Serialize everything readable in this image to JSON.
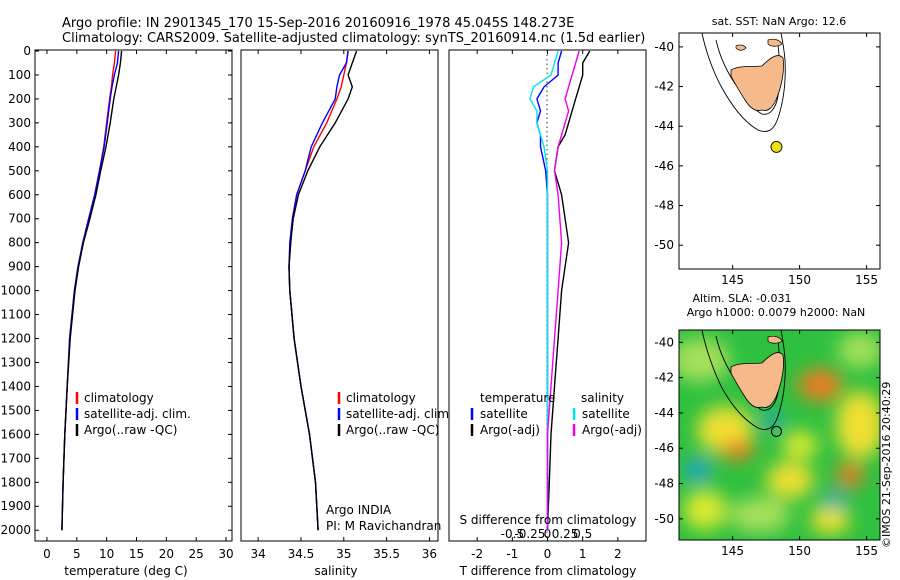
{
  "header": {
    "line1": "Argo profile: IN 2901345_170 15-Sep-2016 20160916_1978 45.045S 148.273E",
    "line2": "Climatology: CARS2009. Satellite-adjusted climatology: synTS_20160914.nc (1.5d earlier)"
  },
  "colors": {
    "climatology": "#ff0000",
    "satellite": "#0000ff",
    "argo": "#000000",
    "sal_satellite": "#00e5ee",
    "sal_argo": "#ee00ee",
    "land": "#f6b98a",
    "marker": "#f0e010"
  },
  "chart_data": [
    {
      "type": "line",
      "xlabel": "temperature (deg C)",
      "ylabel": "",
      "xlim": [
        -2,
        31
      ],
      "ylim": [
        2050,
        0
      ],
      "xticks": [
        0,
        5,
        10,
        15,
        20,
        25,
        30
      ],
      "yticks": [
        0,
        100,
        200,
        300,
        400,
        500,
        600,
        700,
        800,
        900,
        1000,
        1100,
        1200,
        1300,
        1400,
        1500,
        1600,
        1700,
        1800,
        1900,
        2000
      ],
      "legend": [
        "climatology",
        "satellite-adj. clim.",
        "Argo(..raw -QC)"
      ],
      "series": [
        {
          "name": "climatology",
          "color": "#ff0000",
          "depth": [
            0,
            50,
            100,
            150,
            200,
            300,
            400,
            500,
            600,
            700,
            800,
            900,
            1000,
            1200,
            1400,
            1600,
            1800,
            2000
          ],
          "values": [
            11.5,
            11.3,
            11.0,
            10.8,
            10.5,
            10.0,
            9.5,
            8.8,
            8.0,
            7.0,
            6.0,
            5.2,
            4.6,
            3.8,
            3.4,
            3.0,
            2.7,
            2.5
          ]
        },
        {
          "name": "satellite-adj. clim.",
          "color": "#0000ff",
          "depth": [
            0,
            50,
            100,
            150,
            200,
            300,
            400,
            500,
            600,
            700,
            800,
            900,
            1000,
            1200,
            1400,
            1600,
            1800,
            2000
          ],
          "values": [
            12.0,
            11.8,
            11.3,
            10.9,
            10.6,
            10.1,
            9.6,
            8.8,
            8.0,
            7.0,
            6.0,
            5.2,
            4.6,
            3.8,
            3.4,
            3.0,
            2.7,
            2.5
          ]
        },
        {
          "name": "Argo(..raw -QC)",
          "color": "#000000",
          "depth": [
            0,
            50,
            100,
            150,
            200,
            300,
            400,
            500,
            600,
            700,
            800,
            900,
            1000,
            1200,
            1400,
            1600,
            1800,
            2000
          ],
          "values": [
            12.5,
            12.3,
            12.0,
            11.6,
            11.2,
            10.6,
            9.9,
            9.0,
            8.2,
            7.2,
            6.1,
            5.3,
            4.7,
            3.9,
            3.4,
            3.0,
            2.7,
            2.5
          ]
        }
      ]
    },
    {
      "type": "line",
      "xlabel": "salinity",
      "ylabel": "",
      "xlim": [
        33.8,
        36.1
      ],
      "ylim": [
        2050,
        0
      ],
      "xticks": [
        34,
        34.5,
        35,
        35.5,
        36
      ],
      "legend": [
        "climatology",
        "satellite-adj. clim.",
        "Argo(..raw -QC)"
      ],
      "note_lines": [
        "Argo INDIA",
        "PI: M Ravichandran"
      ],
      "series": [
        {
          "name": "climatology",
          "color": "#ff0000",
          "depth": [
            0,
            50,
            100,
            150,
            200,
            300,
            400,
            500,
            600,
            700,
            800,
            900,
            1000,
            1200,
            1400,
            1600,
            1800,
            2000
          ],
          "values": [
            35.05,
            35.03,
            35.0,
            34.97,
            34.92,
            34.8,
            34.65,
            34.55,
            34.45,
            34.4,
            34.38,
            34.36,
            34.37,
            34.42,
            34.5,
            34.6,
            34.67,
            34.7
          ]
        },
        {
          "name": "satellite-adj. clim.",
          "color": "#0000ff",
          "depth": [
            0,
            50,
            100,
            150,
            200,
            300,
            400,
            500,
            600,
            700,
            800,
            900,
            1000,
            1200,
            1400,
            1600,
            1800,
            2000
          ],
          "values": [
            35.05,
            35.03,
            34.95,
            34.92,
            34.9,
            34.75,
            34.62,
            34.55,
            34.45,
            34.4,
            34.37,
            34.36,
            34.37,
            34.42,
            34.5,
            34.6,
            34.67,
            34.7
          ]
        },
        {
          "name": "Argo(..raw -QC)",
          "color": "#000000",
          "depth": [
            0,
            50,
            100,
            150,
            200,
            300,
            400,
            500,
            600,
            700,
            800,
            900,
            1000,
            1200,
            1400,
            1600,
            1800,
            2000
          ],
          "values": [
            35.15,
            35.1,
            35.05,
            35.1,
            35.05,
            34.9,
            34.72,
            34.58,
            34.47,
            34.41,
            34.38,
            34.36,
            34.37,
            34.42,
            34.5,
            34.6,
            34.67,
            34.7
          ]
        }
      ]
    },
    {
      "type": "line",
      "xlabel": "T difference from climatology",
      "top_label": "S difference from climatology",
      "xlim": [
        -2.8,
        2.8
      ],
      "ylim": [
        2050,
        0
      ],
      "xticks": [
        -2,
        -1,
        0,
        1,
        2
      ],
      "top_ticks": [
        "-0.5",
        "-0.25",
        "0",
        "0.25",
        "0.5"
      ],
      "legend_left_title": "temperature",
      "legend_right_title": "salinity",
      "legend_left": [
        "satellite",
        "Argo(-adj)"
      ],
      "legend_right": [
        "satellite",
        "Argo(-adj)"
      ],
      "series": [
        {
          "name": "T satellite",
          "color": "#0000ff",
          "depth": [
            0,
            50,
            100,
            150,
            200,
            250,
            300,
            350,
            400,
            500,
            600,
            800,
            1000,
            1200,
            1400,
            1600,
            1800,
            2000
          ],
          "values": [
            0.4,
            0.3,
            0.3,
            -0.1,
            -0.3,
            -0.2,
            -0.3,
            -0.2,
            -0.2,
            -0.05,
            0,
            0,
            0,
            0,
            0,
            0,
            0,
            0
          ]
        },
        {
          "name": "T Argo(-adj)",
          "color": "#000000",
          "depth": [
            0,
            50,
            100,
            150,
            200,
            250,
            300,
            350,
            400,
            500,
            600,
            800,
            1000,
            1200,
            1400,
            1600,
            1800,
            2000
          ],
          "values": [
            1.2,
            1.0,
            1.0,
            0.9,
            0.8,
            0.7,
            0.6,
            0.5,
            0.3,
            0.2,
            0.4,
            0.6,
            0.4,
            0.3,
            0.2,
            0.1,
            0.05,
            0.0
          ]
        },
        {
          "name": "S satellite",
          "color": "#00e5ee",
          "depth": [
            0,
            50,
            100,
            150,
            200,
            250,
            300,
            350,
            400,
            500,
            600,
            800,
            1000,
            1200,
            1400,
            1600,
            1800,
            2000
          ],
          "values": [
            0.3,
            0.2,
            0.1,
            -0.4,
            -0.5,
            -0.3,
            -0.3,
            -0.2,
            -0.1,
            0,
            0,
            0,
            0,
            0,
            0,
            0,
            0,
            0
          ]
        },
        {
          "name": "S Argo(-adj)",
          "color": "#ee00ee",
          "depth": [
            0,
            50,
            100,
            150,
            200,
            250,
            300,
            350,
            400,
            500,
            600,
            800,
            1000,
            1200,
            1400,
            1600,
            1800,
            2000
          ],
          "values": [
            0.9,
            0.8,
            0.7,
            0.6,
            0.5,
            0.6,
            0.5,
            0.4,
            0.3,
            0.2,
            0.3,
            0.4,
            0.3,
            0.2,
            0.1,
            0.0,
            0.0,
            0.0
          ]
        }
      ]
    },
    {
      "type": "map",
      "title": "sat. SST: NaN Argo: 12.6",
      "xticks": [
        145,
        150,
        155
      ],
      "yticks": [
        -40,
        -42,
        -44,
        -46,
        -48,
        -50
      ],
      "lon_range": [
        141,
        156
      ],
      "lat_range": [
        -51.2,
        -39.3
      ],
      "float_position": {
        "lon": 148.273,
        "lat": -45.045
      }
    },
    {
      "type": "heatmap",
      "title_line1": "Altim. SLA: -0.031",
      "title_line2": "Argo h1000: 0.0079 h2000: NaN",
      "xticks": [
        145,
        150,
        155
      ],
      "yticks": [
        -40,
        -42,
        -44,
        -46,
        -48,
        -50
      ],
      "lon_range": [
        141,
        156
      ],
      "lat_range": [
        -51.2,
        -39.3
      ],
      "float_position": {
        "lon": 148.273,
        "lat": -45.045
      }
    }
  ],
  "footer": {
    "watermark": "©IMOS 21-Sep-2016 20:40:29"
  }
}
